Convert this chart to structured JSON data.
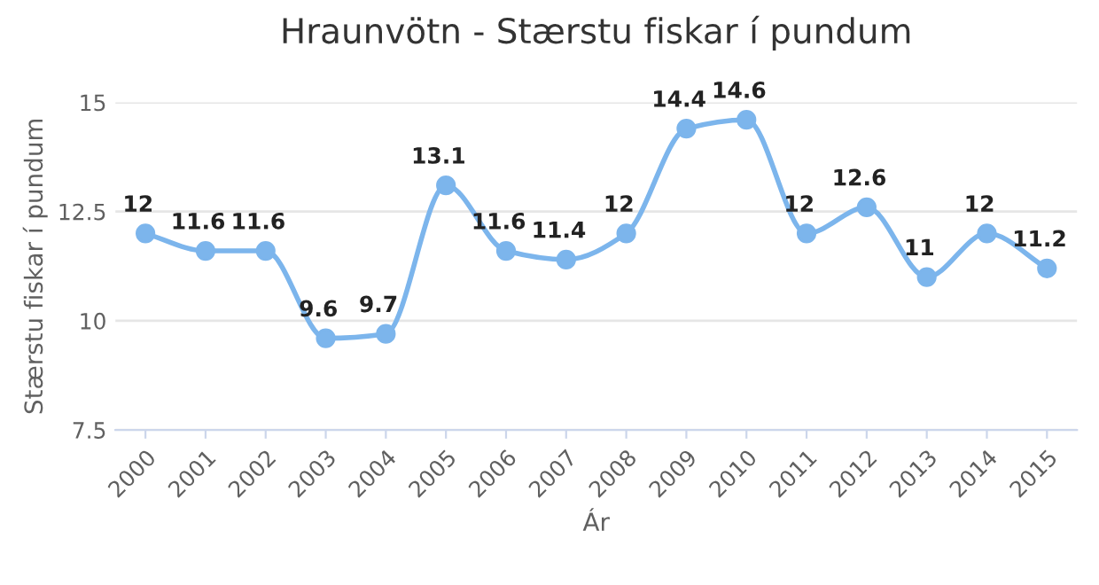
{
  "chart_data": {
    "type": "line",
    "title": "Hraunvötn - Stærstu fiskar í pundum",
    "xlabel": "Ár",
    "ylabel": "Stærstu fiskar í pundum",
    "categories": [
      "2000",
      "2001",
      "2002",
      "2003",
      "2004",
      "2005",
      "2006",
      "2007",
      "2008",
      "2009",
      "2010",
      "2011",
      "2012",
      "2013",
      "2014",
      "2015"
    ],
    "series": [
      {
        "color": "#7cb5ec",
        "values": [
          12,
          11.6,
          11.6,
          9.6,
          9.7,
          13.1,
          11.6,
          11.4,
          12,
          14.4,
          14.6,
          12,
          12.6,
          11,
          12,
          11.2
        ]
      }
    ],
    "ylim": [
      7.5,
      15
    ],
    "yticks": [
      7.5,
      10,
      12.5,
      15
    ],
    "grid": "y",
    "legend": false,
    "marker": "circle",
    "line_style": "solid",
    "data_labels": true
  }
}
